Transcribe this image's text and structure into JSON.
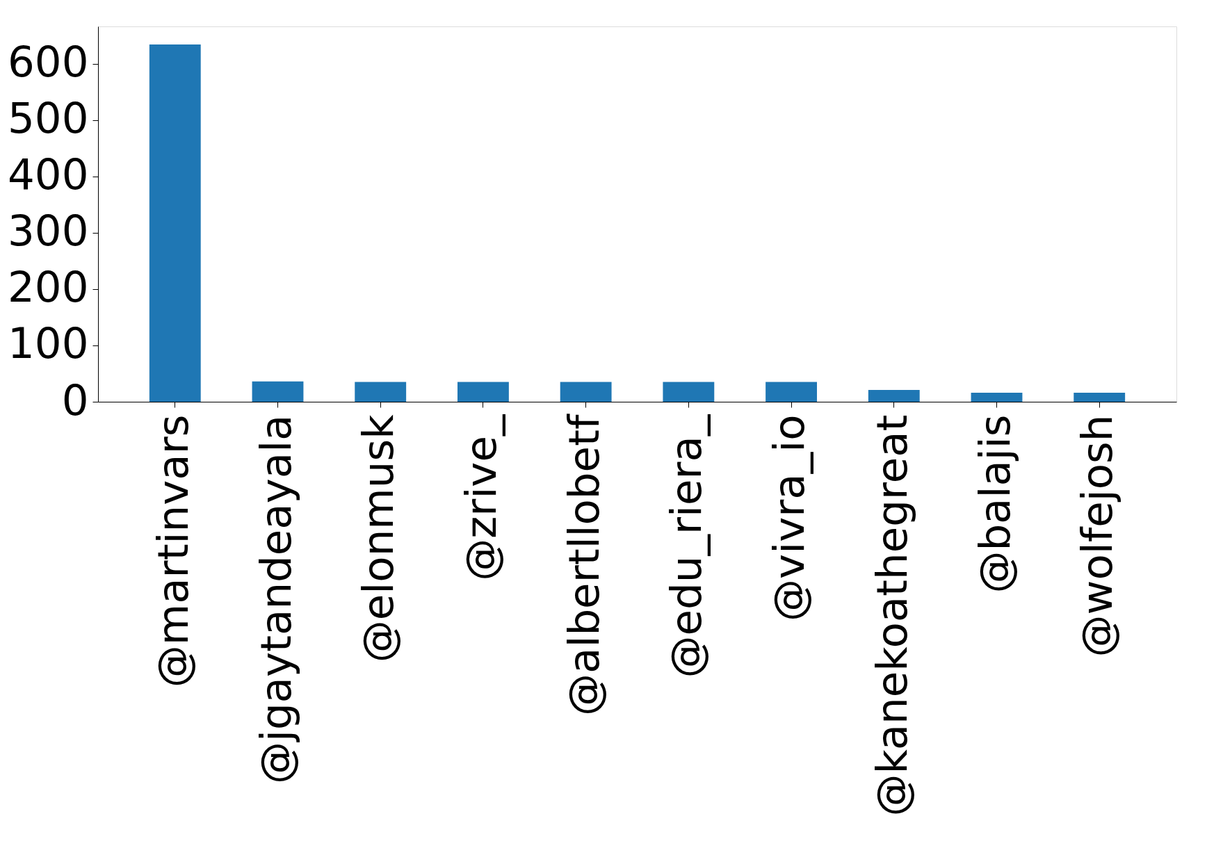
{
  "chart_data": {
    "type": "bar",
    "categories": [
      "@martinvars",
      "@jgaytandeayala",
      "@elonmusk",
      "@zrive_",
      "@albertllobetf",
      "@edu_riera_",
      "@vivra_io",
      "@kanekoathegreat",
      "@balajis",
      "@wolfejosh"
    ],
    "values": [
      634,
      36,
      35,
      35,
      35,
      35,
      35,
      21,
      16,
      16
    ],
    "color": "#1f77b4",
    "ylim": [
      0,
      666
    ],
    "yticks": [
      0,
      100,
      200,
      300,
      400,
      500,
      600
    ],
    "grid": false
  }
}
